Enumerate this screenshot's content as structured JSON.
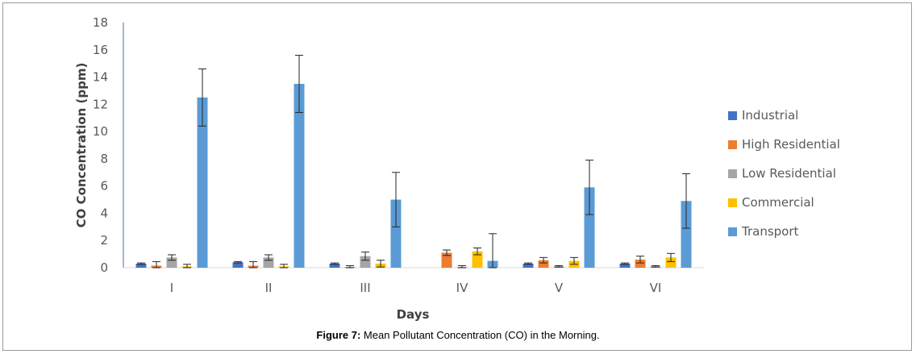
{
  "caption": {
    "label": "Figure 7:",
    "text": " Mean Pollutant Concentration (CO) in the Morning."
  },
  "chart_data": {
    "type": "bar",
    "title": "",
    "xlabel": "Days",
    "ylabel": "CO Concentration (ppm)",
    "ylim": [
      0,
      18
    ],
    "yticks": [
      0,
      2,
      4,
      6,
      8,
      10,
      12,
      14,
      16,
      18
    ],
    "grid": false,
    "legend_position": "right",
    "categories": [
      "I",
      "II",
      "III",
      "IV",
      "V",
      "VI"
    ],
    "series": [
      {
        "name": "Industrial",
        "color": "#4472c4",
        "values": [
          0.3,
          0.4,
          0.3,
          0.0,
          0.3,
          0.3
        ],
        "errors": [
          0.05,
          0.05,
          0.05,
          0.0,
          0.05,
          0.05
        ]
      },
      {
        "name": "High Residential",
        "color": "#ed7d31",
        "values": [
          0.15,
          0.15,
          0.05,
          1.1,
          0.55,
          0.6
        ],
        "errors": [
          0.3,
          0.3,
          0.1,
          0.2,
          0.2,
          0.25
        ]
      },
      {
        "name": "Low Residential",
        "color": "#a5a5a5",
        "values": [
          0.75,
          0.75,
          0.85,
          0.05,
          0.1,
          0.1
        ],
        "errors": [
          0.2,
          0.2,
          0.3,
          0.1,
          0.05,
          0.05
        ]
      },
      {
        "name": "Commercial",
        "color": "#ffc000",
        "values": [
          0.1,
          0.1,
          0.3,
          1.2,
          0.5,
          0.75
        ],
        "errors": [
          0.15,
          0.15,
          0.25,
          0.25,
          0.25,
          0.3
        ]
      },
      {
        "name": "Transport",
        "color": "#5b9bd5",
        "values": [
          12.5,
          13.5,
          5.0,
          0.5,
          5.9,
          4.9
        ],
        "errors": [
          2.1,
          2.1,
          2.0,
          2.0,
          2.0,
          2.0
        ]
      }
    ]
  }
}
